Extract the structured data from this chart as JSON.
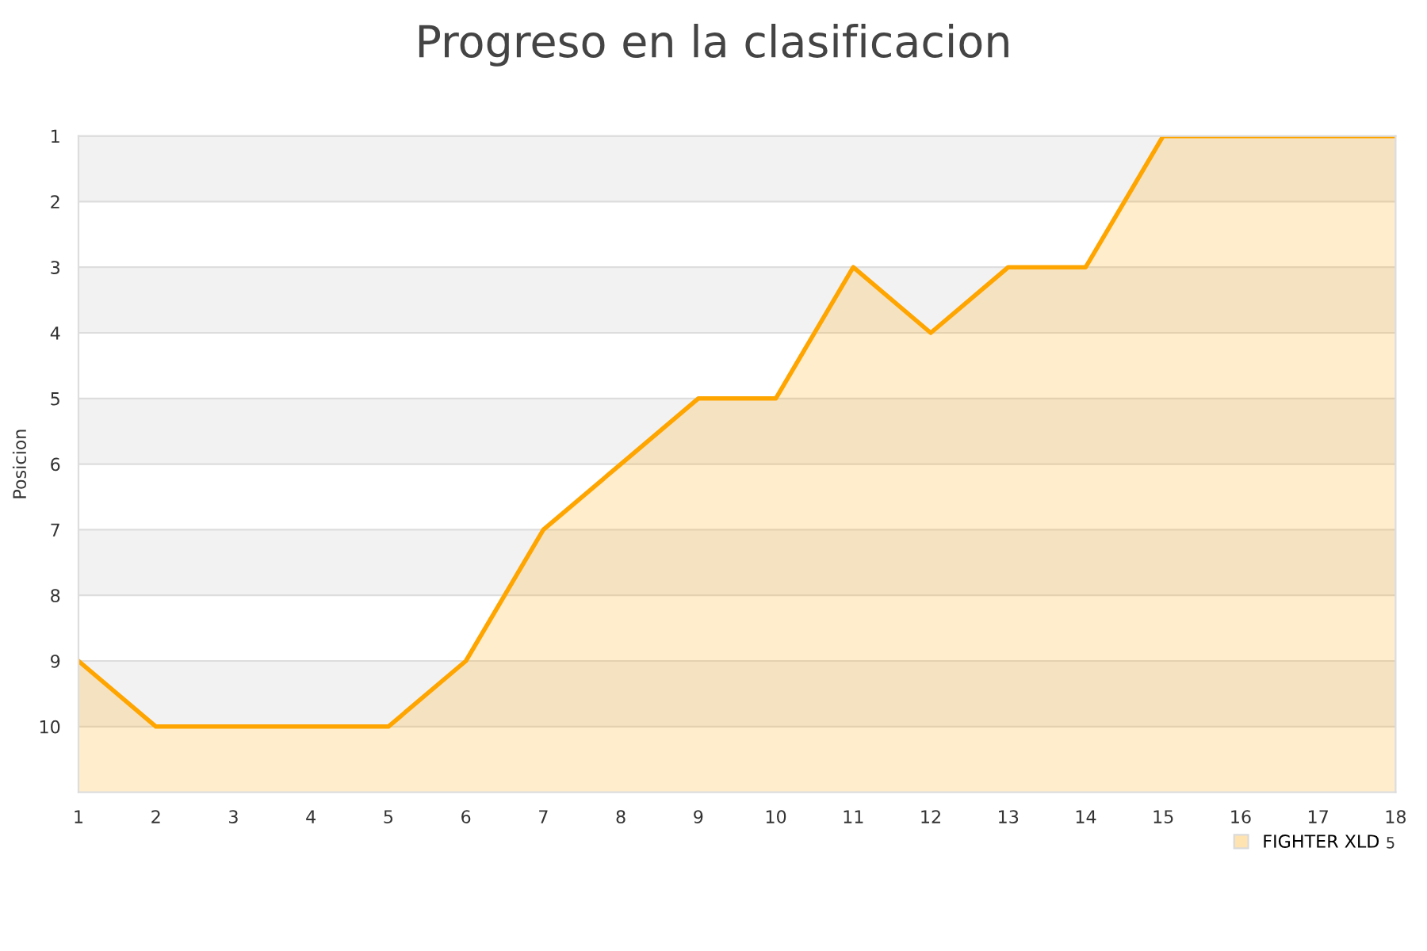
{
  "chart_data": {
    "type": "area",
    "title": "Progreso en la clasificacion",
    "ylabel": "Posicion",
    "x": [
      1,
      2,
      3,
      4,
      5,
      6,
      7,
      8,
      9,
      10,
      11,
      12,
      13,
      14,
      15,
      16,
      17,
      18
    ],
    "series": [
      {
        "name": "FIGHTER XLD",
        "color": "#ffa500",
        "values": [
          9,
          10,
          10,
          10,
          10,
          9,
          7,
          6,
          5,
          5,
          3,
          4,
          3,
          3,
          1,
          1,
          1,
          1
        ]
      }
    ],
    "xlim": [
      1,
      18
    ],
    "xticks": [
      1,
      2,
      3,
      4,
      5,
      6,
      7,
      8,
      9,
      10,
      11,
      12,
      13,
      14,
      15,
      16,
      17,
      18
    ],
    "ylim": [
      11,
      1
    ],
    "yticks": [
      1,
      2,
      3,
      4,
      5,
      6,
      7,
      8,
      9,
      10
    ],
    "bands": [
      {
        "axis": "y",
        "from": 1,
        "to": 2,
        "color": "#f2f2f2"
      },
      {
        "axis": "y",
        "from": 3,
        "to": 4,
        "color": "#f2f2f2"
      },
      {
        "axis": "y",
        "from": 5,
        "to": 6,
        "color": "#f2f2f2"
      },
      {
        "axis": "y",
        "from": 7,
        "to": 8,
        "color": "#f2f2f2"
      },
      {
        "axis": "y",
        "from": 9,
        "to": 10,
        "color": "#f2f2f2"
      }
    ],
    "grid": "y",
    "legend": "bottom right",
    "annotations": [
      "5"
    ]
  }
}
